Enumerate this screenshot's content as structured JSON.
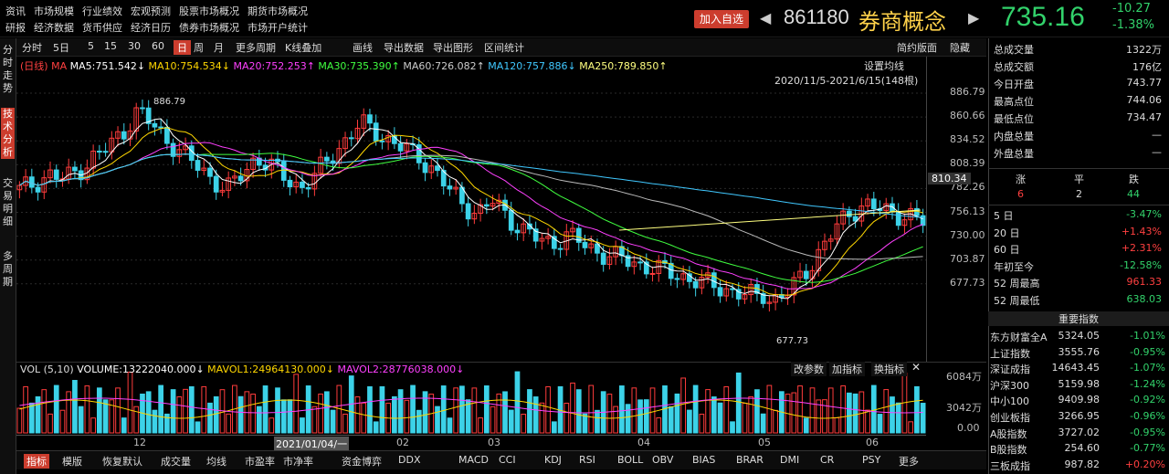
{
  "top_menu": {
    "row1": [
      "资讯",
      "市场规模",
      "行业绩效",
      "宏观预测",
      "股票市场概况",
      "期货市场概况"
    ],
    "row2": [
      "研报",
      "经济数据",
      "货币供应",
      "经济日历",
      "债券市场概况",
      "市场开户统计"
    ]
  },
  "header": {
    "add_button": "加入自选",
    "code": "861180",
    "name": "券商概念",
    "price": "735.16",
    "change": "-10.27",
    "change_pct": "-1.38%"
  },
  "toolbar": {
    "items": [
      "分时",
      "5日",
      "5",
      "15",
      "30",
      "60",
      "日",
      "周",
      "月",
      "更多周期",
      "K线叠加",
      "画线",
      "导出数据",
      "导出图形",
      "区间统计"
    ],
    "active": "日",
    "right_items": [
      "简约版面",
      "隐藏"
    ]
  },
  "left_tabs": [
    "分时走势",
    "技术分析",
    "交易明细",
    "多周期"
  ],
  "ma_legend": {
    "prefix": "(日线) MA",
    "ma5": "MA5:751.542↓",
    "ma10": "MA10:754.534↓",
    "ma20": "MA20:752.253↑",
    "ma30": "MA30:735.390↑",
    "ma60": "MA60:726.082↑",
    "ma120": "MA120:757.886↓",
    "ma250": "MA250:789.850↑",
    "setting": "设置均线",
    "range": "2020/11/5-2021/6/15(148根)"
  },
  "chart_data": {
    "type": "candlestick",
    "y_ticks": [
      "886.79",
      "860.66",
      "834.52",
      "808.39",
      "782.26",
      "756.13",
      "730.00",
      "703.87",
      "677.73"
    ],
    "current_price_label": "810.34",
    "high_label": "886.79",
    "low_label": "677.73",
    "x_labels": [
      "12",
      "2021/01/04/一",
      "02",
      "03",
      "04",
      "05",
      "06"
    ],
    "vol_ticks": [
      "6084万",
      "3042万",
      "0.00"
    ]
  },
  "vol_legend": {
    "vol": "VOL (5,10)",
    "volume": "VOLUME:13222040.000↓",
    "mavol1": "MAVOL1:24964130.000↓",
    "mavol2": "MAVOL2:28776038.000↓",
    "btns": [
      "改参数",
      "加指标",
      "换指标"
    ]
  },
  "bottom_tabs": [
    "指标",
    "模版",
    "恢复默认",
    "成交量",
    "均线",
    "市盈率",
    "市净率",
    "资金博弈",
    "DDX",
    "MACD",
    "CCI",
    "KDJ",
    "RSI",
    "BOLL",
    "OBV",
    "BIAS",
    "BRAR",
    "DMI",
    "CR",
    "PSY",
    "更多"
  ],
  "stats": [
    {
      "label": "总成交量",
      "value": "1322万"
    },
    {
      "label": "总成交额",
      "value": "176亿"
    },
    {
      "label": "今日开盘",
      "value": "743.77"
    },
    {
      "label": "最高点位",
      "value": "744.06"
    },
    {
      "label": "最低点位",
      "value": "734.47"
    },
    {
      "label": "内盘总量",
      "value": "—"
    },
    {
      "label": "外盘总量",
      "value": "—"
    }
  ],
  "breadth": {
    "up_label": "涨",
    "flat_label": "平",
    "down_label": "跌",
    "up": "6",
    "flat": "2",
    "down": "44"
  },
  "periods": [
    {
      "label": "5 日",
      "value": "-3.47%",
      "dir": "down"
    },
    {
      "label": "20 日",
      "value": "+1.43%",
      "dir": "up"
    },
    {
      "label": "60 日",
      "value": "+2.31%",
      "dir": "up"
    },
    {
      "label": "年初至今",
      "value": "-12.58%",
      "dir": "down"
    },
    {
      "label": "52 周最高",
      "value": "961.33",
      "dir": "up"
    },
    {
      "label": "52 周最低",
      "value": "638.03",
      "dir": "down"
    }
  ],
  "indices_header": "重要指数",
  "indices": [
    {
      "name": "东方财富全A",
      "value": "5324.05",
      "pct": "-1.01%",
      "dir": "down"
    },
    {
      "name": "上证指数",
      "value": "3555.76",
      "pct": "-0.95%",
      "dir": "down"
    },
    {
      "name": "深证成指",
      "value": "14643.45",
      "pct": "-1.07%",
      "dir": "down"
    },
    {
      "name": "沪深300",
      "value": "5159.98",
      "pct": "-1.24%",
      "dir": "down"
    },
    {
      "name": "中小100",
      "value": "9409.98",
      "pct": "-0.92%",
      "dir": "down"
    },
    {
      "name": "创业板指",
      "value": "3266.95",
      "pct": "-0.96%",
      "dir": "down"
    },
    {
      "name": "A股指数",
      "value": "3727.02",
      "pct": "-0.95%",
      "dir": "down"
    },
    {
      "name": "B股指数",
      "value": "254.60",
      "pct": "-0.77%",
      "dir": "down"
    },
    {
      "name": "三板成指",
      "value": "987.82",
      "pct": "+0.20%",
      "dir": "up"
    }
  ]
}
